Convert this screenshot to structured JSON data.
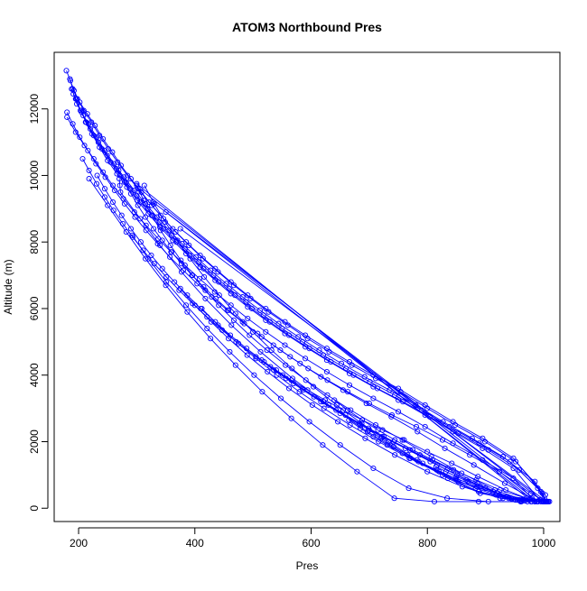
{
  "chart_data": {
    "type": "line",
    "title": "ATOM3 Northbound Pres",
    "xlabel": "Pres",
    "ylabel": "Altitude (m)",
    "xlim": [
      158,
      1028
    ],
    "ylim": [
      -400,
      13700
    ],
    "xticks": [
      200,
      400,
      600,
      800,
      1000
    ],
    "yticks": [
      0,
      2000,
      4000,
      6000,
      8000,
      10000,
      12000
    ],
    "grid": false,
    "legend": "none",
    "series_color": "#0000ff",
    "marker": "open-circle",
    "series": [
      {
        "x": [
          179,
          186,
          192,
          202,
          215,
          228,
          242,
          258,
          273,
          290,
          308,
          326,
          346,
          367,
          390,
          414,
          440,
          467,
          496,
          527,
          560,
          594,
          631,
          670,
          711,
          754,
          800,
          848,
          899,
          952,
          1003,
          1008
        ],
        "y": [
          13150,
          12850,
          12550,
          12200,
          11850,
          11500,
          11100,
          10700,
          10300,
          9900,
          9500,
          9100,
          8700,
          8300,
          7900,
          7500,
          7100,
          6700,
          6300,
          5900,
          5500,
          5100,
          4700,
          4300,
          3900,
          3500,
          3000,
          2500,
          2000,
          1400,
          400,
          200
        ]
      },
      {
        "x": [
          185,
          190,
          198,
          209,
          222,
          236,
          251,
          267,
          284,
          302,
          321,
          341,
          362,
          385,
          409,
          435,
          462,
          491,
          522,
          555,
          590,
          627,
          666,
          707,
          750,
          796,
          844,
          895,
          948,
          995,
          1006
        ],
        "y": [
          12900,
          12600,
          12300,
          11950,
          11600,
          11200,
          10800,
          10400,
          10000,
          9600,
          9200,
          8800,
          8400,
          8000,
          7600,
          7200,
          6800,
          6400,
          6000,
          5600,
          5200,
          4800,
          4400,
          4000,
          3600,
          3100,
          2600,
          2100,
          1500,
          500,
          200
        ]
      },
      {
        "x": [
          188,
          195,
          205,
          217,
          231,
          245,
          261,
          278,
          296,
          315,
          335,
          356,
          378,
          402,
          427,
          454,
          482,
          512,
          544,
          578,
          614,
          652,
          692,
          735,
          780,
          827,
          877,
          930,
          985,
          1004
        ],
        "y": [
          12600,
          12300,
          11900,
          11550,
          11150,
          10750,
          10350,
          9950,
          9550,
          9150,
          8750,
          8350,
          7950,
          7550,
          7150,
          6750,
          6350,
          5950,
          5550,
          5150,
          4750,
          4350,
          3950,
          3550,
          3100,
          2600,
          2100,
          1550,
          800,
          200
        ]
      },
      {
        "x": [
          191,
          197,
          208,
          220,
          234,
          249,
          265,
          282,
          300,
          319,
          339,
          360,
          383,
          407,
          432,
          459,
          488,
          518,
          550,
          585,
          621,
          660,
          701,
          744,
          790,
          838,
          889,
          942,
          990,
          1002
        ],
        "y": [
          12450,
          12150,
          11800,
          11400,
          11000,
          10600,
          10200,
          9800,
          9400,
          9000,
          8600,
          8200,
          7800,
          7400,
          7000,
          6600,
          6200,
          5800,
          5400,
          5000,
          4600,
          4200,
          3800,
          3400,
          2950,
          2450,
          1950,
          1400,
          600,
          200
        ]
      },
      {
        "x": [
          196,
          203,
          213,
          226,
          240,
          255,
          271,
          288,
          306,
          326,
          346,
          368,
          391,
          415,
          441,
          469,
          498,
          529,
          562,
          597,
          634,
          673,
          714,
          758,
          804,
          853,
          905,
          958,
          998,
          1005
        ],
        "y": [
          12300,
          11950,
          11600,
          11200,
          10800,
          10400,
          10000,
          9600,
          9200,
          8800,
          8400,
          8000,
          7600,
          7200,
          6800,
          6400,
          6000,
          5600,
          5200,
          4800,
          4400,
          4000,
          3600,
          3200,
          2750,
          2250,
          1750,
          1150,
          450,
          200
        ]
      },
      {
        "x": [
          205,
          212,
          223,
          236,
          250,
          266,
          283,
          301,
          320,
          340,
          362,
          385,
          409,
          435,
          462,
          491,
          522,
          555,
          590,
          627,
          666,
          707,
          750,
          796,
          844,
          895,
          948,
          993
        ],
        "y": [
          11950,
          11600,
          11250,
          10850,
          10450,
          10050,
          9650,
          9250,
          8850,
          8450,
          8050,
          7650,
          7250,
          6850,
          6450,
          6050,
          5650,
          5250,
          4850,
          4450,
          4050,
          3650,
          3250,
          2800,
          2300,
          1800,
          1200,
          250
        ]
      },
      {
        "x": [
          180,
          190,
          202,
          216,
          230,
          246,
          262,
          279,
          297,
          316,
          336,
          357,
          380,
          404,
          429,
          456,
          485,
          515,
          547,
          581,
          617,
          655,
          695,
          738,
          783,
          830,
          880,
          933,
          980,
          1010
        ],
        "y": [
          11900,
          11550,
          11150,
          10750,
          10350,
          9950,
          9550,
          9150,
          8750,
          8350,
          7950,
          7550,
          7150,
          6750,
          6350,
          5950,
          5550,
          5150,
          4750,
          4350,
          3950,
          3550,
          3150,
          2750,
          2300,
          1800,
          1300,
          750,
          300,
          200
        ]
      },
      {
        "x": [
          180,
          195,
          210,
          226,
          242,
          259,
          277,
          296,
          316,
          337,
          359,
          383,
          408,
          434,
          462,
          491,
          522,
          555,
          590,
          627,
          666,
          707,
          750,
          796,
          844,
          895,
          948,
          985
        ],
        "y": [
          11750,
          11300,
          10900,
          10500,
          10100,
          9700,
          9300,
          8900,
          8500,
          8100,
          7700,
          7300,
          6900,
          6500,
          6100,
          5700,
          5300,
          4900,
          4500,
          4100,
          3700,
          3300,
          2900,
          2450,
          1950,
          1450,
          900,
          200
        ]
      },
      {
        "x": [
          207,
          218,
          231,
          245,
          260,
          276,
          293,
          311,
          330,
          351,
          373,
          396,
          421,
          447,
          475,
          505,
          536,
          570,
          605,
          643,
          683,
          725,
          770,
          817,
          867,
          920,
          975,
          1000
        ],
        "y": [
          10500,
          10150,
          9750,
          9350,
          8950,
          8550,
          8150,
          7750,
          7350,
          6950,
          6550,
          6150,
          5750,
          5350,
          4950,
          4550,
          4150,
          3750,
          3350,
          2950,
          2550,
          2150,
          1750,
          1300,
          850,
          450,
          250,
          200
        ]
      },
      {
        "x": [
          232,
          245,
          259,
          274,
          290,
          307,
          325,
          344,
          365,
          387,
          410,
          435,
          461,
          489,
          519,
          551,
          585,
          621,
          659,
          699,
          742,
          787,
          835,
          886,
          940,
          988
        ],
        "y": [
          10000,
          9600,
          9200,
          8800,
          8400,
          8000,
          7600,
          7200,
          6800,
          6400,
          6000,
          5600,
          5200,
          4800,
          4400,
          4000,
          3600,
          3200,
          2800,
          2400,
          2000,
          1600,
          1200,
          750,
          300,
          200
        ]
      },
      {
        "x": [
          269,
          279,
          290,
          302,
          315,
          329,
          344,
          360,
          377,
          395,
          415,
          436,
          458,
          482,
          508,
          535,
          564,
          595,
          628,
          663,
          700,
          739,
          781,
          826,
          873,
          924,
          978,
          1002
        ],
        "y": [
          10150,
          9800,
          9450,
          9100,
          8750,
          8400,
          8050,
          7700,
          7350,
          7000,
          6650,
          6300,
          5950,
          5600,
          5250,
          4900,
          4550,
          4200,
          3850,
          3500,
          3150,
          2800,
          2450,
          2050,
          1600,
          1100,
          450,
          200
        ]
      },
      {
        "x": [
          300,
          312,
          326,
          341,
          358,
          376,
          396,
          418,
          441,
          467,
          494,
          524,
          556,
          591,
          628,
          668,
          711,
          757,
          807,
          859,
          916,
          965,
          1005
        ],
        "y": [
          9700,
          9250,
          8800,
          8350,
          7900,
          7450,
          7000,
          6550,
          6100,
          5650,
          5200,
          4750,
          4300,
          3850,
          3400,
          2950,
          2500,
          2050,
          1550,
          1050,
          550,
          250,
          200
        ]
      },
      {
        "x": [
          313,
          330,
          349,
          370,
          392,
          416,
          442,
          470,
          500,
          532,
          567,
          604,
          644,
          687,
          733,
          782,
          835,
          891,
          951,
          1006
        ],
        "y": [
          9700,
          9150,
          8600,
          8050,
          7500,
          6950,
          6400,
          5850,
          5300,
          4750,
          4200,
          3650,
          3100,
          2550,
          2000,
          1450,
          900,
          450,
          250,
          200
        ]
      },
      {
        "x": [
          270,
          271,
          272,
          306,
          340,
          377,
          418,
          463,
          513,
          568,
          630,
          697,
          771,
          853,
          944,
          1000
        ],
        "y": [
          9900,
          9700,
          9500,
          8700,
          7900,
          7100,
          6300,
          5500,
          4700,
          3900,
          3100,
          2300,
          1500,
          800,
          300,
          200
        ]
      },
      {
        "x": [
          300,
          980
        ],
        "y": [
          9750,
          200
        ]
      },
      {
        "x": [
          305,
          990
        ],
        "y": [
          9600,
          200
        ]
      },
      {
        "x": [
          328,
          1000
        ],
        "y": [
          9200,
          200
        ]
      },
      {
        "x": [
          350,
          985
        ],
        "y": [
          8900,
          200
        ]
      },
      {
        "x": [
          375,
          1005
        ],
        "y": [
          8400,
          200
        ]
      },
      {
        "x": [
          218,
          250,
          282,
          315,
          350,
          387,
          427,
          470,
          516,
          566,
          620,
          679,
          743,
          812,
          888,
          960,
          1000
        ],
        "y": [
          9900,
          9100,
          8300,
          7500,
          6700,
          5900,
          5100,
          4300,
          3500,
          2700,
          1900,
          1100,
          300,
          200,
          200,
          200,
          200
        ]
      },
      {
        "x": [
          292,
          320,
          351,
          385,
          421,
          460,
          502,
          548,
          597,
          650,
          707,
          768,
          834,
          905,
          962,
          1003
        ],
        "y": [
          8200,
          7500,
          6800,
          6100,
          5400,
          4700,
          4000,
          3300,
          2600,
          1900,
          1200,
          600,
          300,
          200,
          200,
          200
        ]
      },
      {
        "x": [
          375,
          400,
          428,
          458,
          490,
          525,
          562,
          602,
          646,
          693,
          744,
          800,
          860,
          925,
          972,
          1008
        ],
        "y": [
          6600,
          6100,
          5600,
          5100,
          4600,
          4100,
          3600,
          3100,
          2600,
          2100,
          1600,
          1100,
          650,
          300,
          200,
          200
        ]
      },
      {
        "x": [
          412,
          440,
          471,
          505,
          541,
          580,
          622,
          667,
          716,
          769,
          826,
          888,
          955,
          998
        ],
        "y": [
          6000,
          5500,
          5000,
          4500,
          4000,
          3500,
          3000,
          2500,
          2000,
          1500,
          1000,
          500,
          250,
          200
        ]
      },
      {
        "x": [
          515,
          540,
          566,
          594,
          624,
          655,
          688,
          723,
          760,
          800,
          842,
          887,
          935,
          985
        ],
        "y": [
          4450,
          4150,
          3850,
          3550,
          3250,
          2950,
          2650,
          2350,
          2050,
          1700,
          1350,
          950,
          550,
          200
        ]
      },
      {
        "x": [
          530,
          557,
          586,
          617,
          650,
          685,
          722,
          762,
          805,
          851,
          900,
          952,
          990
        ],
        "y": [
          4250,
          3900,
          3550,
          3200,
          2850,
          2500,
          2150,
          1800,
          1400,
          1000,
          600,
          250,
          200
        ]
      },
      {
        "x": [
          640,
          663,
          688,
          715,
          744,
          775,
          809,
          845,
          884,
          925,
          970,
          998
        ],
        "y": [
          3250,
          2950,
          2650,
          2350,
          2050,
          1750,
          1450,
          1150,
          850,
          550,
          300,
          200
        ]
      },
      {
        "x": [
          665,
          685,
          707,
          731,
          757,
          785,
          816,
          849,
          885,
          924,
          962,
          995
        ],
        "y": [
          2650,
          2400,
          2150,
          1900,
          1650,
          1400,
          1150,
          900,
          650,
          400,
          250,
          200
        ]
      },
      {
        "x": [
          700,
          720,
          742,
          766,
          792,
          820,
          850,
          883,
          918,
          955,
          990
        ],
        "y": [
          2350,
          2100,
          1850,
          1600,
          1350,
          1100,
          850,
          600,
          400,
          250,
          200
        ]
      },
      {
        "x": [
          815,
          832,
          850,
          870,
          891,
          913,
          937,
          962,
          990
        ],
        "y": [
          1250,
          1100,
          950,
          800,
          650,
          500,
          350,
          220,
          200
        ]
      },
      {
        "x": [
          930,
          945,
          958,
          968,
          978,
          990
        ],
        "y": [
          300,
          280,
          250,
          220,
          200,
          200
        ]
      }
    ]
  }
}
